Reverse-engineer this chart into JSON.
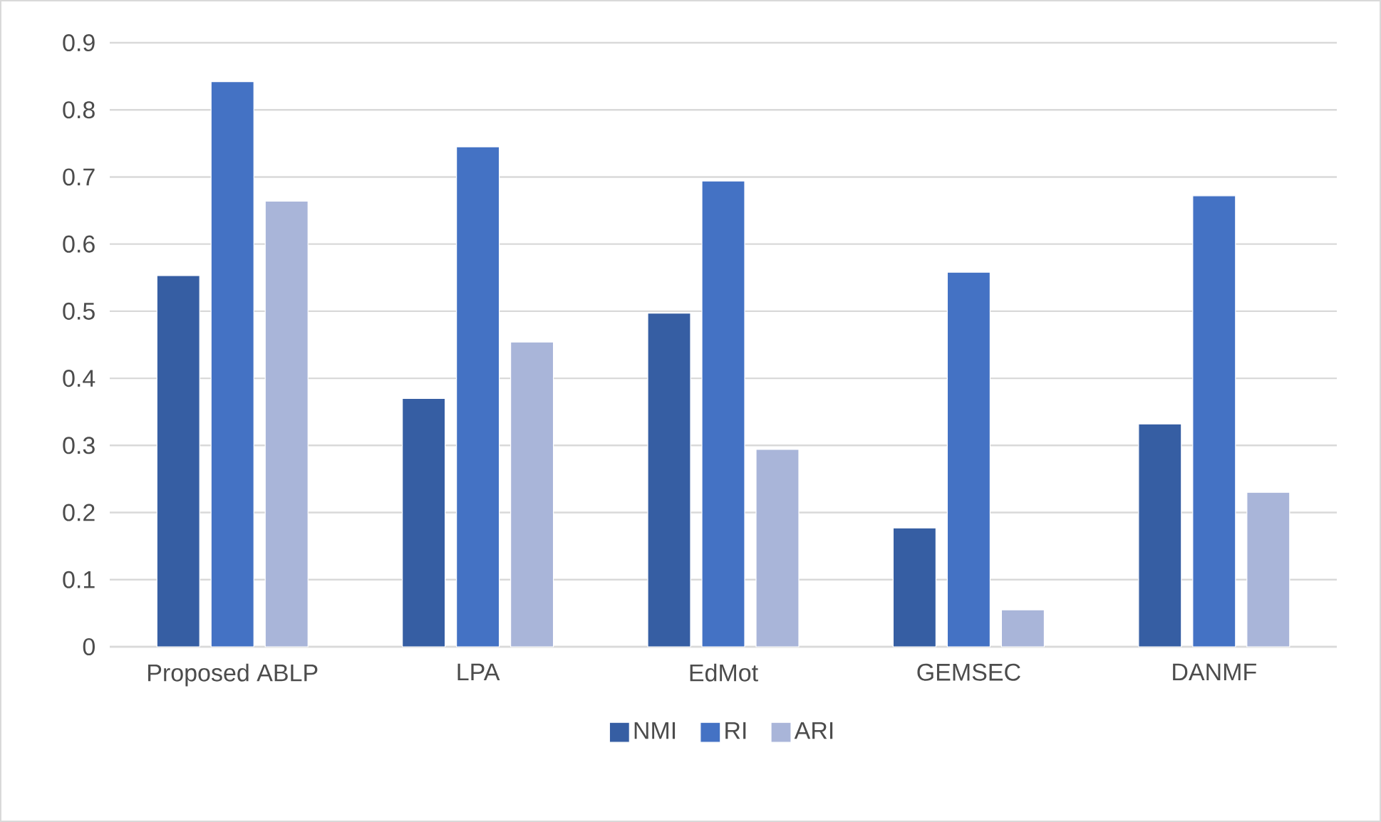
{
  "chart_data": {
    "type": "bar",
    "categories": [
      "Proposed ABLP",
      "LPA",
      "EdMot",
      "GEMSEC",
      "DANMF"
    ],
    "series": [
      {
        "name": "NMI",
        "color": "#365ea3",
        "values": [
          0.553,
          0.37,
          0.497,
          0.177,
          0.332
        ]
      },
      {
        "name": "RI",
        "color": "#4472c4",
        "values": [
          0.842,
          0.745,
          0.694,
          0.558,
          0.672
        ]
      },
      {
        "name": "ARI",
        "color": "#a9b5d9",
        "values": [
          0.664,
          0.454,
          0.294,
          0.055,
          0.23
        ]
      }
    ],
    "ylim": [
      0,
      0.9
    ],
    "yticks": [
      0,
      0.1,
      0.2,
      0.3,
      0.4,
      0.5,
      0.6,
      0.7,
      0.8,
      0.9
    ],
    "grid": "y",
    "legend": "bottom"
  }
}
